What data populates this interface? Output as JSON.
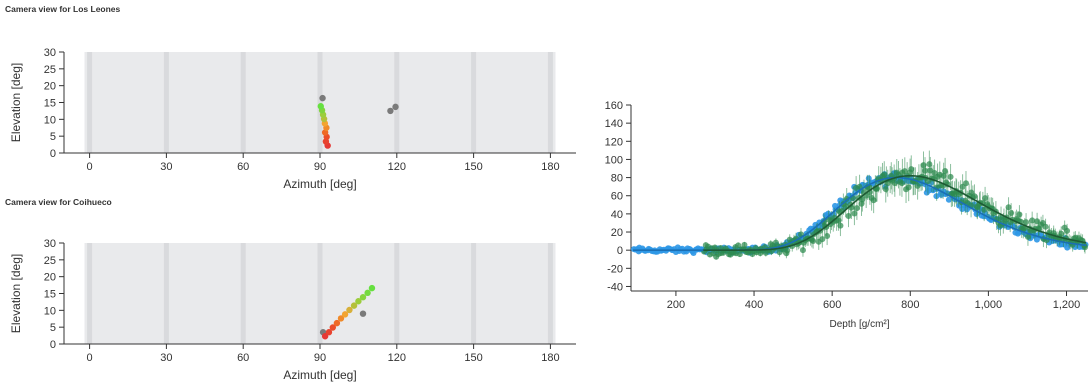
{
  "panels": {
    "los_leones_title": "Camera view for Los Leones",
    "coihueco_title": "Camera view for Coihueco"
  },
  "colors": {
    "camera_bg": "#e9eaec",
    "camera_seam": "#d9dadd",
    "inactive_pixel": "#7a7a7a",
    "blue_series": "#2d97e6",
    "green_series": "#2e8b4f",
    "blue_fit": "#1a6fb5",
    "green_fit": "#1e5a34"
  },
  "chart_data": [
    {
      "type": "scatter",
      "id": "los_leones",
      "xlabel": "Azimuth [deg]",
      "ylabel": "Elevation [deg]",
      "xlim": [
        -10,
        190
      ],
      "ylim": [
        0,
        30
      ],
      "xticks": [
        0,
        30,
        60,
        90,
        120,
        150,
        180
      ],
      "yticks": [
        0,
        5,
        10,
        15,
        20,
        25,
        30
      ],
      "camera_band": [
        -2,
        182
      ],
      "camera_seams": [
        0,
        30,
        60,
        90,
        120,
        150,
        180
      ],
      "points": [
        {
          "x": 93.0,
          "y": 2.2,
          "c": "#e53935"
        },
        {
          "x": 92.3,
          "y": 3.4,
          "c": "#e8432f"
        },
        {
          "x": 92.6,
          "y": 4.8,
          "c": "#eb4e2a"
        },
        {
          "x": 92.0,
          "y": 6.1,
          "c": "#ef6a26"
        },
        {
          "x": 92.5,
          "y": 7.5,
          "c": "#f08a2a"
        },
        {
          "x": 91.9,
          "y": 8.8,
          "c": "#f3a430"
        },
        {
          "x": 91.6,
          "y": 10.1,
          "c": "#b4c03a"
        },
        {
          "x": 91.2,
          "y": 11.4,
          "c": "#9ccd3c"
        },
        {
          "x": 90.8,
          "y": 12.7,
          "c": "#7fd43e"
        },
        {
          "x": 90.3,
          "y": 13.9,
          "c": "#66e040"
        },
        {
          "x": 91.0,
          "y": 16.3,
          "c": "#7a7a7a"
        },
        {
          "x": 117.5,
          "y": 12.5,
          "c": "#7a7a7a"
        },
        {
          "x": 119.5,
          "y": 13.7,
          "c": "#7a7a7a"
        }
      ]
    },
    {
      "type": "scatter",
      "id": "coihueco",
      "xlabel": "Azimuth [deg]",
      "ylabel": "Elevation [deg]",
      "xlim": [
        -10,
        190
      ],
      "ylim": [
        0,
        30
      ],
      "xticks": [
        0,
        30,
        60,
        90,
        120,
        150,
        180
      ],
      "yticks": [
        0,
        5,
        10,
        15,
        20,
        25,
        30
      ],
      "camera_band": [
        -2,
        182
      ],
      "camera_seams": [
        0,
        30,
        60,
        90,
        120,
        150,
        180
      ],
      "points": [
        {
          "x": 91.2,
          "y": 3.5,
          "c": "#7a7a7a"
        },
        {
          "x": 92.0,
          "y": 2.3,
          "c": "#e53935"
        },
        {
          "x": 93.5,
          "y": 3.5,
          "c": "#e8432f"
        },
        {
          "x": 95.0,
          "y": 4.9,
          "c": "#eb4e2a"
        },
        {
          "x": 96.6,
          "y": 6.2,
          "c": "#ef6a26"
        },
        {
          "x": 98.2,
          "y": 7.6,
          "c": "#f08a2a"
        },
        {
          "x": 99.8,
          "y": 8.8,
          "c": "#f3a430"
        },
        {
          "x": 101.5,
          "y": 10.1,
          "c": "#d7b03a"
        },
        {
          "x": 103.3,
          "y": 11.4,
          "c": "#b4c03a"
        },
        {
          "x": 105.0,
          "y": 12.7,
          "c": "#9ccd3c"
        },
        {
          "x": 106.8,
          "y": 13.9,
          "c": "#86d43e"
        },
        {
          "x": 108.6,
          "y": 15.2,
          "c": "#74da3f"
        },
        {
          "x": 110.3,
          "y": 16.6,
          "c": "#66e040"
        },
        {
          "x": 106.8,
          "y": 9.0,
          "c": "#7a7a7a"
        }
      ]
    },
    {
      "type": "scatter",
      "id": "profile",
      "xlabel": "Depth [g/cm²]",
      "ylabel": "",
      "xlim": [
        85,
        1255
      ],
      "ylim": [
        -45,
        160
      ],
      "xticks": [
        200,
        400,
        600,
        800,
        1000,
        1200
      ],
      "xtick_labels": [
        "200",
        "400",
        "600",
        "800",
        "1,000",
        "1,200"
      ],
      "yticks": [
        -40,
        -20,
        0,
        20,
        40,
        60,
        80,
        100,
        120,
        140,
        160
      ],
      "series": [
        {
          "name": "",
          "color": "#2d97e6",
          "fit": {
            "xmax": 765,
            "nmax": 80,
            "x0": 280,
            "lambda": 55,
            "from": 90,
            "to": 1250
          },
          "x_range": [
            90,
            1250
          ],
          "n": 300,
          "err_scale": 0.6,
          "noise": 3.5
        },
        {
          "name": "",
          "color": "#2e8b4f",
          "fit": {
            "xmax": 800,
            "nmax": 82,
            "x0": 280,
            "lambda": 55,
            "from": 270,
            "to": 1250
          },
          "x_range": [
            270,
            1250
          ],
          "n": 260,
          "err_scale": 1.0,
          "noise": 9
        }
      ]
    }
  ]
}
